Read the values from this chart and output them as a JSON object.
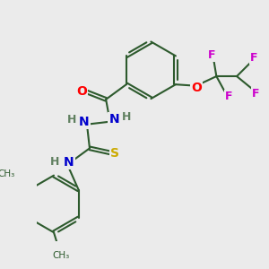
{
  "bg_color": "#ebebeb",
  "bond_color": "#2d5a2d",
  "bond_width": 1.5,
  "atom_colors": {
    "O": "#ff0000",
    "N": "#0000cc",
    "S": "#ccaa00",
    "F": "#cc00cc",
    "C": "#2d5a2d",
    "H": "#608060"
  },
  "font_size": 9,
  "figsize": [
    3.0,
    3.0
  ],
  "dpi": 100
}
